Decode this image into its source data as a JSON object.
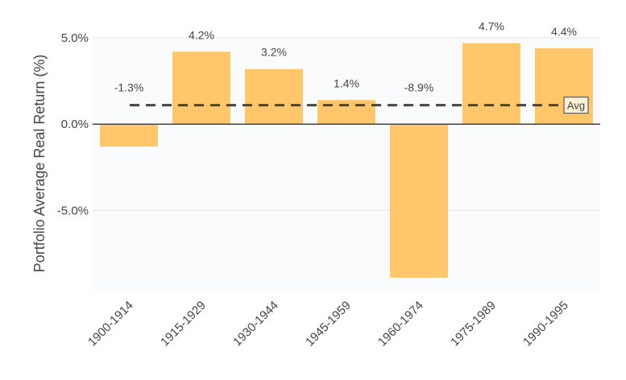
{
  "chart_data": {
    "type": "bar",
    "title": "",
    "xlabel": "",
    "ylabel": "Portfolio Average Real Return (%)",
    "categories": [
      "1900-1914",
      "1915-1929",
      "1930-1944",
      "1945-1959",
      "1960-1974",
      "1975-1989",
      "1990-1995"
    ],
    "values": [
      -1.3,
      4.2,
      3.2,
      1.4,
      -8.9,
      4.7,
      4.4
    ],
    "value_labels": [
      "-1.3%",
      "4.2%",
      "3.2%",
      "1.4%",
      "-8.9%",
      "4.7%",
      "4.4%"
    ],
    "ylim": [
      -9.7,
      5.1
    ],
    "yticks": [
      5,
      0,
      -5
    ],
    "ytick_labels": [
      "5.0%",
      "0.0%",
      "-5.0%"
    ],
    "average": {
      "value": 1.1,
      "label": "Avg",
      "style": "dashed"
    },
    "grid": true,
    "bar_color": "#ffc76a",
    "line_color": "#444444",
    "plot_background": "#f9fbfd"
  }
}
